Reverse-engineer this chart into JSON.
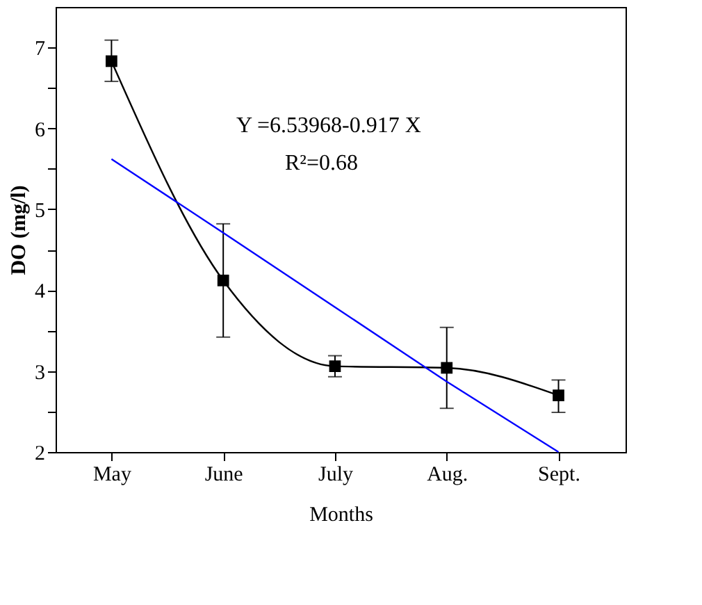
{
  "chart_data": {
    "type": "line",
    "xlabel": "Months",
    "ylabel": "DO (mg/l)",
    "categories": [
      "May",
      "June",
      "July",
      "Aug.",
      "Sept."
    ],
    "series": [
      {
        "color": "#000000",
        "marker": "square",
        "values": [
          6.83,
          4.12,
          3.06,
          3.04,
          2.7
        ],
        "errors": [
          [
            6.58,
            7.09
          ],
          [
            3.42,
            4.82
          ],
          [
            2.93,
            3.19
          ],
          [
            2.54,
            3.54
          ],
          [
            2.49,
            2.89
          ]
        ]
      },
      {
        "type": "line",
        "color": "#0000ff",
        "marker": "none",
        "values": [
          5.62,
          4.71,
          3.79,
          2.87,
          2.0
        ]
      }
    ],
    "ylim": [
      2,
      7.5
    ],
    "yticks": [
      2,
      {
        "value": 2.5,
        "label": null
      },
      3,
      {
        "value": 3.5,
        "label": null
      },
      4,
      {
        "value": 4.5,
        "label": null
      },
      5,
      {
        "value": 5.5,
        "label": null
      },
      6,
      {
        "value": 6.5,
        "label": null
      },
      7
    ],
    "annotations": [
      "Y =6.53968-0.917 X",
      "R²=0.68"
    ],
    "grid": false,
    "line_style": "solid"
  }
}
